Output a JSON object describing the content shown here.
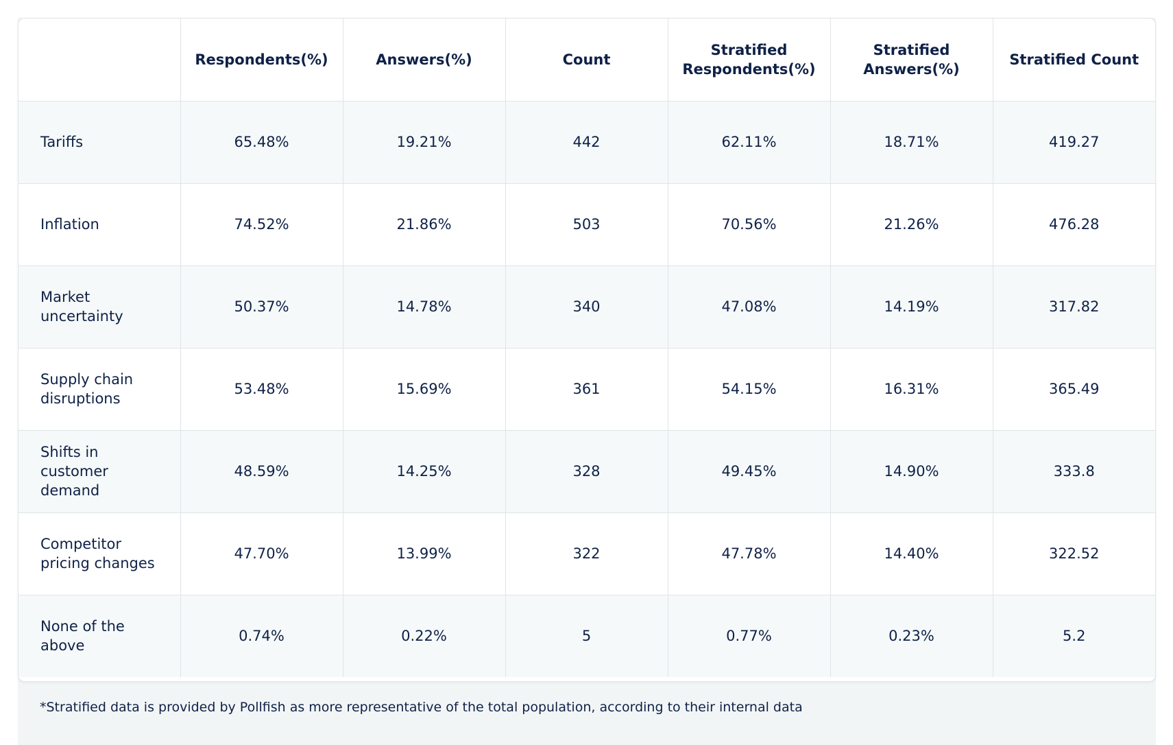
{
  "table": {
    "headers": [
      "",
      "Respondents(%)",
      "Answers(%)",
      "Count",
      "Stratified Respondents(%)",
      "Stratified Answers(%)",
      "Stratified Count"
    ],
    "rows": [
      [
        "Tariffs",
        "65.48%",
        "19.21%",
        "442",
        "62.11%",
        "18.71%",
        "419.27"
      ],
      [
        "Inflation",
        "74.52%",
        "21.86%",
        "503",
        "70.56%",
        "21.26%",
        "476.28"
      ],
      [
        "Market uncertainty",
        "50.37%",
        "14.78%",
        "340",
        "47.08%",
        "14.19%",
        "317.82"
      ],
      [
        "Supply chain disruptions",
        "53.48%",
        "15.69%",
        "361",
        "54.15%",
        "16.31%",
        "365.49"
      ],
      [
        "Shifts in customer demand",
        "48.59%",
        "14.25%",
        "328",
        "49.45%",
        "14.90%",
        "333.8"
      ],
      [
        "Competitor pricing changes",
        "47.70%",
        "13.99%",
        "322",
        "47.78%",
        "14.40%",
        "322.52"
      ],
      [
        "None of the above",
        "0.74%",
        "0.22%",
        "5",
        "0.77%",
        "0.23%",
        "5.2"
      ]
    ]
  },
  "footnote": "*Stratified data is provided by Pollfish as more representative of the total population, according to their internal data"
}
